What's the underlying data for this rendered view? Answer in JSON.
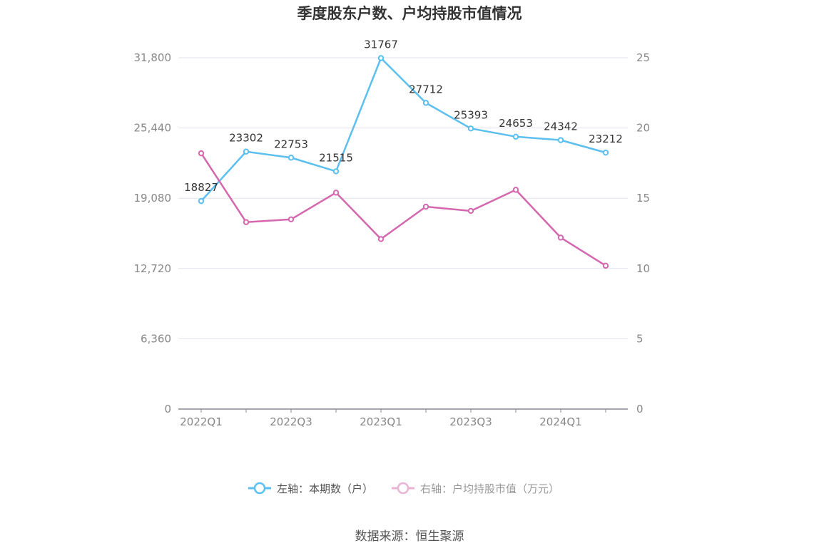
{
  "chart_data": {
    "type": "line",
    "title": "季度股东户数、户均持股市值情况",
    "x": [
      "2022Q1",
      "2022Q2",
      "2022Q3",
      "2022Q4",
      "2023Q1",
      "2023Q2",
      "2023Q3",
      "2023Q4",
      "2024Q1",
      "2024Q2"
    ],
    "x_tick_labels": [
      "2022Q1",
      "2022Q3",
      "2023Q1",
      "2023Q3",
      "2024Q1"
    ],
    "left_axis": {
      "range": [
        0,
        31800
      ],
      "ticks": [
        "0",
        "6,360",
        "12,720",
        "19,080",
        "25,440",
        "31,800"
      ]
    },
    "right_axis": {
      "range": [
        0,
        25
      ],
      "ticks": [
        "0",
        "5",
        "10",
        "15",
        "20",
        "25"
      ]
    },
    "grid": "horizontal",
    "legend_position": "bottom",
    "series": [
      {
        "name": "左轴：本期数（户）",
        "axis": "left",
        "color": "#5bbfef",
        "values": [
          18827,
          23302,
          22753,
          21515,
          31767,
          27712,
          25393,
          24653,
          24342,
          23212
        ],
        "labels": [
          "18827",
          "23302",
          "22753",
          "21515",
          "31767",
          "27712",
          "25393",
          "24653",
          "24342",
          "23212"
        ]
      },
      {
        "name": "右轴：户均持股市值（万元）",
        "axis": "right",
        "color": "#d467ae",
        "values": [
          18.2,
          13.3,
          13.5,
          15.4,
          12.1,
          14.4,
          14.1,
          15.6,
          12.2,
          10.2
        ]
      }
    ]
  },
  "source": "数据来源：恒生聚源",
  "colors": {
    "left_series": "#5bbfef",
    "right_series": "#d467ae",
    "grid": "#e3e3ee",
    "axis": "#888899"
  }
}
